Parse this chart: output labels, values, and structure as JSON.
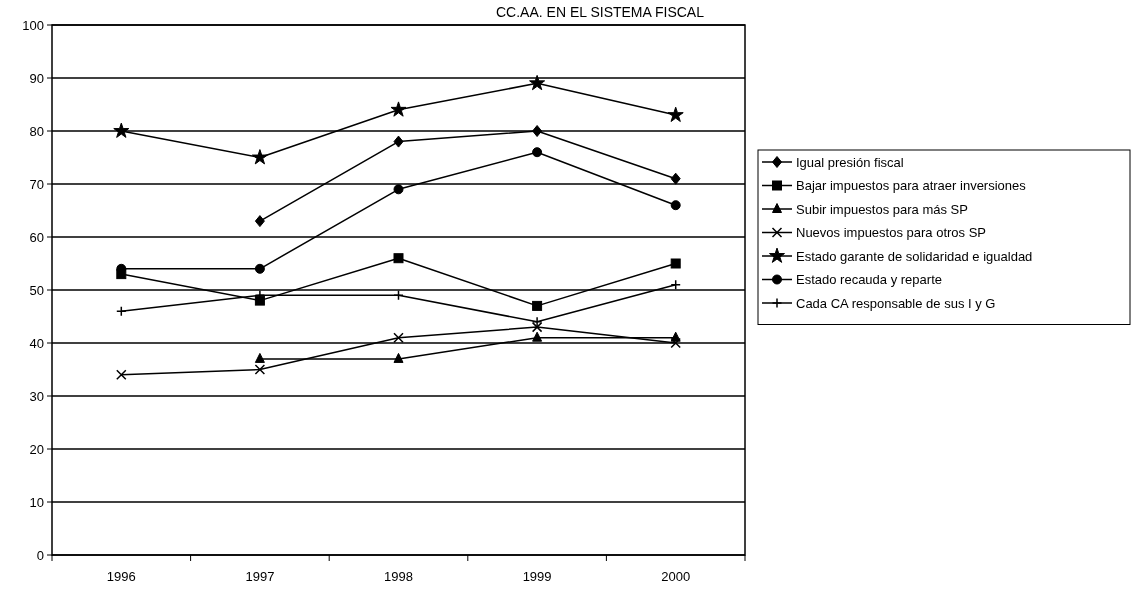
{
  "chart_data": {
    "type": "line",
    "title": "CC.AA. EN EL SISTEMA FISCAL",
    "categories": [
      "1996",
      "1997",
      "1998",
      "1999",
      "2000"
    ],
    "ylim": [
      0,
      100
    ],
    "yticks": [
      0,
      10,
      20,
      30,
      40,
      50,
      60,
      70,
      80,
      90,
      100
    ],
    "grid": "y",
    "legend": "right",
    "line_style": "solid",
    "series": [
      {
        "name": "Igual presión fiscal",
        "color": "#000000",
        "marker": "diamond",
        "values": [
          null,
          63,
          78,
          80,
          71
        ]
      },
      {
        "name": "Bajar impuestos para atraer inversiones",
        "color": "#000000",
        "marker": "square",
        "values": [
          53,
          48,
          56,
          47,
          55
        ]
      },
      {
        "name": "Subir impuestos para más SP",
        "color": "#000000",
        "marker": "triangle",
        "values": [
          null,
          37,
          37,
          41,
          41
        ]
      },
      {
        "name": "Nuevos impuestos para otros SP",
        "color": "#000000",
        "marker": "cross",
        "values": [
          34,
          35,
          41,
          43,
          40
        ]
      },
      {
        "name": "Estado garante de solidaridad e igualdad",
        "color": "#000000",
        "marker": "star",
        "values": [
          80,
          75,
          84,
          89,
          83
        ]
      },
      {
        "name": "Estado recauda y reparte",
        "color": "#000000",
        "marker": "circle",
        "values": [
          54,
          54,
          69,
          76,
          66
        ]
      },
      {
        "name": "Cada CA responsable de sus I y G",
        "color": "#000000",
        "marker": "plus",
        "values": [
          46,
          49,
          49,
          44,
          51
        ]
      }
    ]
  }
}
